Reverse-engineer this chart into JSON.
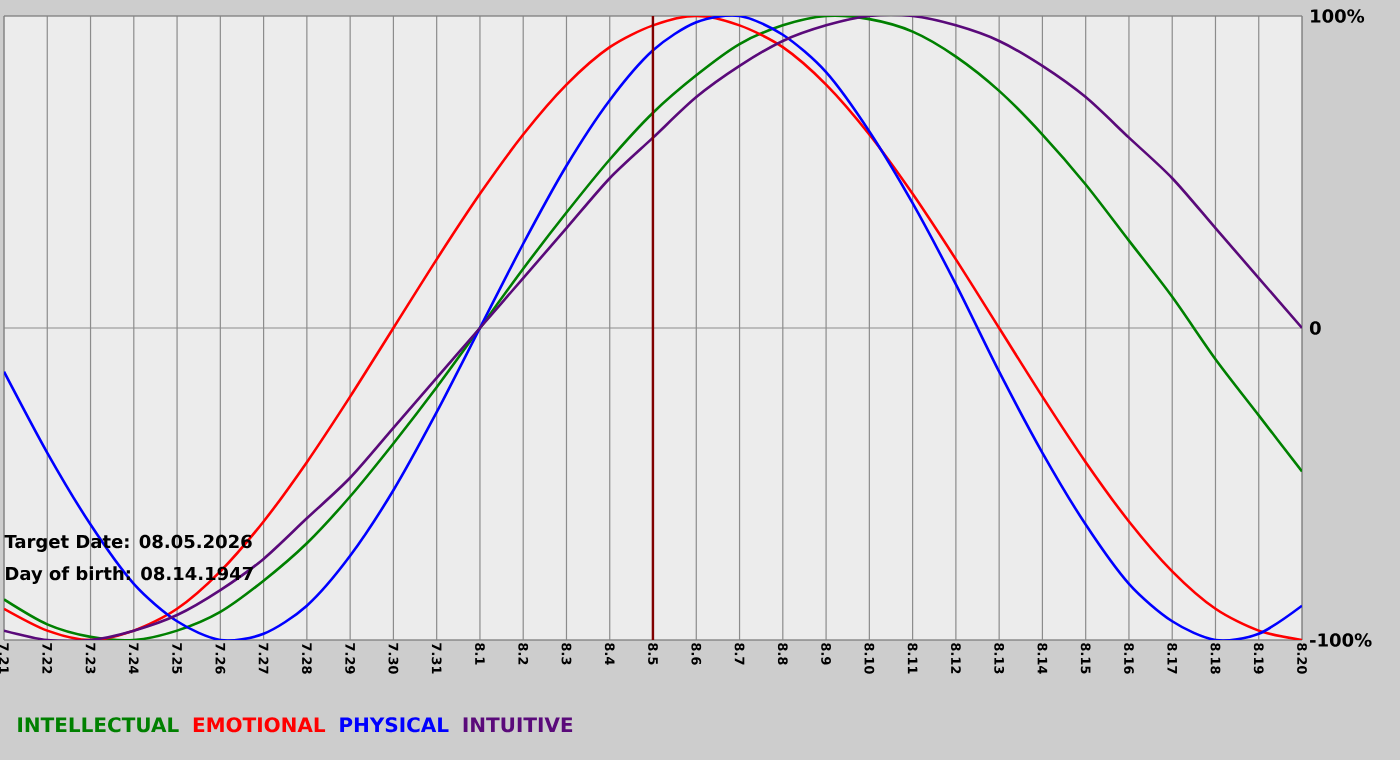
{
  "chart_data": {
    "type": "line",
    "categories": [
      "7.21",
      "7.22",
      "7.23",
      "7.24",
      "7.25",
      "7.26",
      "7.27",
      "7.28",
      "7.29",
      "7.30",
      "7.31",
      "8.1",
      "8.2",
      "8.3",
      "8.4",
      "8.5",
      "8.6",
      "8.7",
      "8.8",
      "8.9",
      "8.10",
      "8.11",
      "8.12",
      "8.13",
      "8.14",
      "8.15",
      "8.16",
      "8.17",
      "8.18",
      "8.19",
      "8.20"
    ],
    "series": [
      {
        "name": "INTELLECTUAL",
        "color": "#008000",
        "values": [
          -87,
          -95,
          -99,
          -100,
          -97,
          -91,
          -81,
          -69,
          -54,
          -37,
          -19,
          0,
          19,
          37,
          54,
          69,
          81,
          91,
          97,
          100,
          99,
          95,
          87,
          76,
          62,
          46,
          28,
          10,
          -10,
          -28,
          -46
        ]
      },
      {
        "name": "EMOTIONAL",
        "color": "#ff0000",
        "values": [
          -90,
          -97,
          -100,
          -97,
          -90,
          -78,
          -62,
          -43,
          -22,
          0,
          22,
          43,
          62,
          78,
          90,
          97,
          100,
          97,
          90,
          78,
          62,
          43,
          22,
          0,
          -22,
          -43,
          -62,
          -78,
          -90,
          -97,
          -100
        ]
      },
      {
        "name": "PHYSICAL",
        "color": "#0000ff",
        "values": [
          -14,
          -40,
          -63,
          -82,
          -94,
          -100,
          -98,
          -89,
          -73,
          -52,
          -27,
          0,
          27,
          52,
          73,
          89,
          98,
          100,
          94,
          82,
          63,
          40,
          14,
          -14,
          -40,
          -63,
          -82,
          -94,
          -100,
          -98,
          -89
        ]
      },
      {
        "name": "INTUITIVE",
        "color": "#5a0a7a",
        "values": [
          -97,
          -100,
          -100,
          -97,
          -92,
          -84,
          -74,
          -61,
          -48,
          -32,
          -16,
          0,
          16,
          32,
          48,
          61,
          74,
          84,
          92,
          97,
          100,
          100,
          97,
          92,
          84,
          74,
          61,
          48,
          32,
          16,
          0
        ]
      }
    ],
    "ylim": [
      -100,
      100
    ],
    "yticks": [
      {
        "value": 100,
        "label": "100%"
      },
      0,
      {
        "value": -100,
        "label": "-100%"
      }
    ],
    "grid": true,
    "legend": "bottom",
    "marker": "none",
    "line_style": "solid",
    "ref_lines": [
      {
        "axis": "x",
        "value": "8.5",
        "color": "#800000"
      }
    ],
    "annotations": [
      "Target Date: 08.05.2026",
      "Day of birth: 08.14.1947"
    ]
  }
}
